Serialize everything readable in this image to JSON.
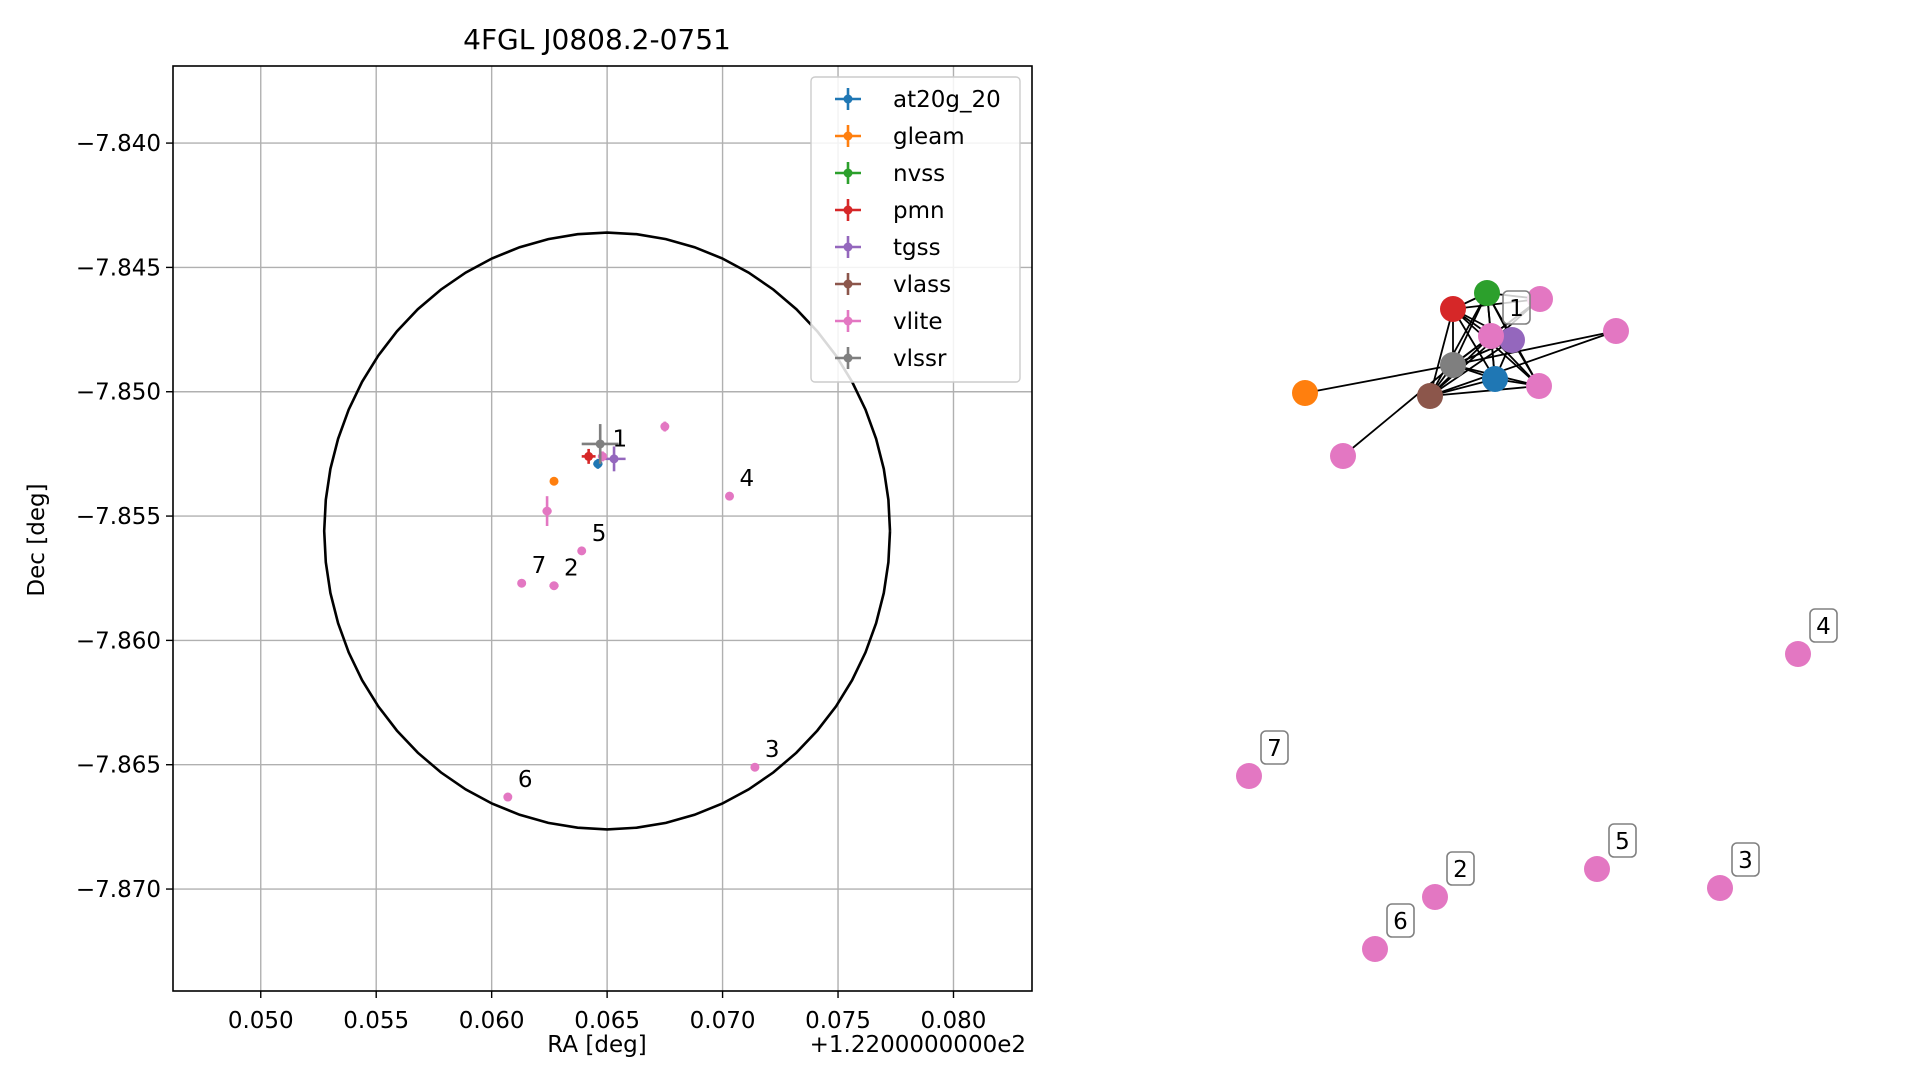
{
  "chart_data": [
    {
      "type": "scatter",
      "title": "4FGL J0808.2-0751",
      "xlabel": "RA [deg]",
      "ylabel": "Dec [deg]",
      "x_offset_label": "+1.2200000000e2",
      "xlim": [
        0.0462,
        0.0834
      ],
      "ylim": [
        -7.8741,
        -7.8369
      ],
      "x_ticks": [
        0.05,
        0.055,
        0.06,
        0.065,
        0.07,
        0.075,
        0.08
      ],
      "x_tick_labels": [
        "0.050",
        "0.055",
        "0.060",
        "0.065",
        "0.070",
        "0.075",
        "0.080"
      ],
      "y_ticks": [
        -7.84,
        -7.845,
        -7.85,
        -7.855,
        -7.86,
        -7.865,
        -7.87
      ],
      "y_tick_labels": [
        "−7.840",
        "−7.845",
        "−7.850",
        "−7.855",
        "−7.860",
        "−7.865",
        "−7.870"
      ],
      "grid": true,
      "legend_position": "top-right",
      "circle": {
        "center": [
          0.065,
          -7.8556
        ],
        "radius_ra": 0.01225,
        "radius_dec": 0.012
      },
      "series": [
        {
          "name": "at20g_20",
          "color": "#1f77b4",
          "points": [
            {
              "x": 0.0646,
              "y": -7.8529,
              "xerr": 0.0002,
              "yerr": 0.0002
            }
          ]
        },
        {
          "name": "gleam",
          "color": "#ff7f0e",
          "points": [
            {
              "x": 0.0627,
              "y": -7.8536,
              "xerr": 0.0,
              "yerr": 0.0
            }
          ]
        },
        {
          "name": "nvss",
          "color": "#2ca02c",
          "points": []
        },
        {
          "name": "pmn",
          "color": "#d62728",
          "points": [
            {
              "x": 0.0642,
              "y": -7.8526,
              "xerr": 0.0003,
              "yerr": 0.0003
            }
          ]
        },
        {
          "name": "tgss",
          "color": "#9467bd",
          "points": [
            {
              "x": 0.0653,
              "y": -7.8527,
              "xerr": 0.0005,
              "yerr": 0.0005
            }
          ]
        },
        {
          "name": "vlass",
          "color": "#8c564b",
          "points": []
        },
        {
          "name": "vlite",
          "color": "#e377c2",
          "points": [
            {
              "x": 0.0648,
              "y": -7.8526,
              "xerr": 0.0002,
              "yerr": 0.0002,
              "label": "1"
            },
            {
              "x": 0.0627,
              "y": -7.8578,
              "xerr": 0.0002,
              "yerr": 0.0,
              "label": "2"
            },
            {
              "x": 0.0714,
              "y": -7.8651,
              "xerr": 0.0,
              "yerr": 0.0,
              "label": "3"
            },
            {
              "x": 0.0703,
              "y": -7.8542,
              "xerr": 0.0,
              "yerr": 0.0,
              "label": "4"
            },
            {
              "x": 0.0639,
              "y": -7.8564,
              "xerr": 0.0,
              "yerr": 0.0,
              "label": "5"
            },
            {
              "x": 0.0607,
              "y": -7.8663,
              "xerr": 0.0,
              "yerr": 0.0,
              "label": "6"
            },
            {
              "x": 0.0613,
              "y": -7.8577,
              "xerr": 0.0,
              "yerr": 0.0,
              "label": "7"
            },
            {
              "x": 0.0675,
              "y": -7.8514,
              "xerr": 0.0,
              "yerr": 0.0002
            },
            {
              "x": 0.0624,
              "y": -7.8548,
              "xerr": 0.0002,
              "yerr": 0.0006
            }
          ]
        },
        {
          "name": "vlssr",
          "color": "#7f7f7f",
          "points": [
            {
              "x": 0.0647,
              "y": -7.8521,
              "xerr": 0.0008,
              "yerr": 0.0008
            }
          ]
        }
      ]
    },
    {
      "type": "diagram",
      "nodes": [
        {
          "id": "at20g_20",
          "color": "#1f77b4",
          "label": ""
        },
        {
          "id": "gleam",
          "color": "#ff7f0e",
          "label": ""
        },
        {
          "id": "nvss",
          "color": "#2ca02c",
          "label": ""
        },
        {
          "id": "pmn",
          "color": "#d62728",
          "label": ""
        },
        {
          "id": "tgss",
          "color": "#9467bd",
          "label": ""
        },
        {
          "id": "vlass",
          "color": "#8c564b",
          "label": ""
        },
        {
          "id": "vlssr",
          "color": "#7f7f7f",
          "label": ""
        },
        {
          "id": "vlite1",
          "color": "#e377c2",
          "label": "1"
        },
        {
          "id": "vlite_a",
          "color": "#e377c2",
          "label": ""
        },
        {
          "id": "vlite_b",
          "color": "#e377c2",
          "label": ""
        },
        {
          "id": "vlite_c",
          "color": "#e377c2",
          "label": ""
        },
        {
          "id": "vlite_d",
          "color": "#e377c2",
          "label": ""
        },
        {
          "id": "vlite2",
          "color": "#e377c2",
          "label": "2"
        },
        {
          "id": "vlite3",
          "color": "#e377c2",
          "label": "3"
        },
        {
          "id": "vlite4",
          "color": "#e377c2",
          "label": "4"
        },
        {
          "id": "vlite5",
          "color": "#e377c2",
          "label": "5"
        },
        {
          "id": "vlite6",
          "color": "#e377c2",
          "label": "6"
        },
        {
          "id": "vlite7",
          "color": "#e377c2",
          "label": "7"
        }
      ],
      "edges": [
        [
          "pmn",
          "nvss"
        ],
        [
          "pmn",
          "vlite_a"
        ],
        [
          "pmn",
          "tgss"
        ],
        [
          "pmn",
          "vlssr"
        ],
        [
          "pmn",
          "vlass"
        ],
        [
          "pmn",
          "at20g_20"
        ],
        [
          "pmn",
          "vlite1"
        ],
        [
          "pmn",
          "vlite_c"
        ],
        [
          "nvss",
          "vlite_a"
        ],
        [
          "nvss",
          "tgss"
        ],
        [
          "nvss",
          "vlssr"
        ],
        [
          "nvss",
          "vlass"
        ],
        [
          "nvss",
          "at20g_20"
        ],
        [
          "nvss",
          "vlite1"
        ],
        [
          "vlite_a",
          "vlssr"
        ],
        [
          "vlite_a",
          "vlass"
        ],
        [
          "vlite_a",
          "vlite1"
        ],
        [
          "vlite1",
          "tgss"
        ],
        [
          "vlite1",
          "vlssr"
        ],
        [
          "vlite1",
          "vlass"
        ],
        [
          "vlite1",
          "at20g_20"
        ],
        [
          "vlite1",
          "vlite_c"
        ],
        [
          "tgss",
          "vlssr"
        ],
        [
          "tgss",
          "vlass"
        ],
        [
          "tgss",
          "at20g_20"
        ],
        [
          "vlssr",
          "vlass"
        ],
        [
          "vlssr",
          "at20g_20"
        ],
        [
          "vlssr",
          "vlite_c"
        ],
        [
          "vlssr",
          "gleam"
        ],
        [
          "vlssr",
          "vlite_b"
        ],
        [
          "vlass",
          "at20g_20"
        ],
        [
          "vlass",
          "vlite_c"
        ],
        [
          "vlass",
          "vlite_d"
        ],
        [
          "at20g_20",
          "vlite_c"
        ],
        [
          "tgss",
          "vlite_c"
        ],
        [
          "nvss",
          "vlite_c"
        ]
      ]
    }
  ]
}
